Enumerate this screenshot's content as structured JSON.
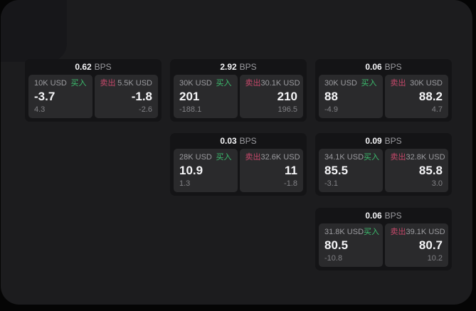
{
  "labels": {
    "buy": "买入",
    "sell": "卖出",
    "bps": "BPS"
  },
  "colors": {
    "outer_bg": "#050505",
    "panel_bg": "#1c1c1e",
    "shade_bg": "#17171a",
    "card_bg": "#141416",
    "subcard_bg": "#2a2a2c",
    "text_primary": "#f5f5f7",
    "text_secondary": "#9c9ca0",
    "text_dim": "#828286",
    "buy_green": "#3cbd6e",
    "sell_red": "#c5486a"
  },
  "cards": [
    {
      "row": 1,
      "col": 1,
      "bps": "0.62",
      "buy": {
        "amount": "10K USD",
        "price": "-3.7",
        "delta": "4.3"
      },
      "sell": {
        "amount": "5.5K USD",
        "price": "-1.8",
        "delta": "-2.6"
      }
    },
    {
      "row": 1,
      "col": 2,
      "bps": "2.92",
      "buy": {
        "amount": "30K USD",
        "price": "201",
        "delta": "-188.1"
      },
      "sell": {
        "amount": "30.1K USD",
        "price": "210",
        "delta": "196.5"
      }
    },
    {
      "row": 1,
      "col": 3,
      "bps": "0.06",
      "buy": {
        "amount": "30K USD",
        "price": "88",
        "delta": "-4.9"
      },
      "sell": {
        "amount": "30K USD",
        "price": "88.2",
        "delta": "4.7"
      }
    },
    {
      "row": 2,
      "col": 2,
      "bps": "0.03",
      "buy": {
        "amount": "28K USD",
        "price": "10.9",
        "delta": "1.3"
      },
      "sell": {
        "amount": "32.6K USD",
        "price": "11",
        "delta": "-1.8"
      }
    },
    {
      "row": 2,
      "col": 3,
      "bps": "0.09",
      "buy": {
        "amount": "34.1K USD",
        "price": "85.5",
        "delta": "-3.1"
      },
      "sell": {
        "amount": "32.8K USD",
        "price": "85.8",
        "delta": "3.0"
      }
    },
    {
      "row": 3,
      "col": 3,
      "bps": "0.06",
      "buy": {
        "amount": "31.8K USD",
        "price": "80.5",
        "delta": "-10.8"
      },
      "sell": {
        "amount": "39.1K USD",
        "price": "80.7",
        "delta": "10.2"
      }
    }
  ]
}
